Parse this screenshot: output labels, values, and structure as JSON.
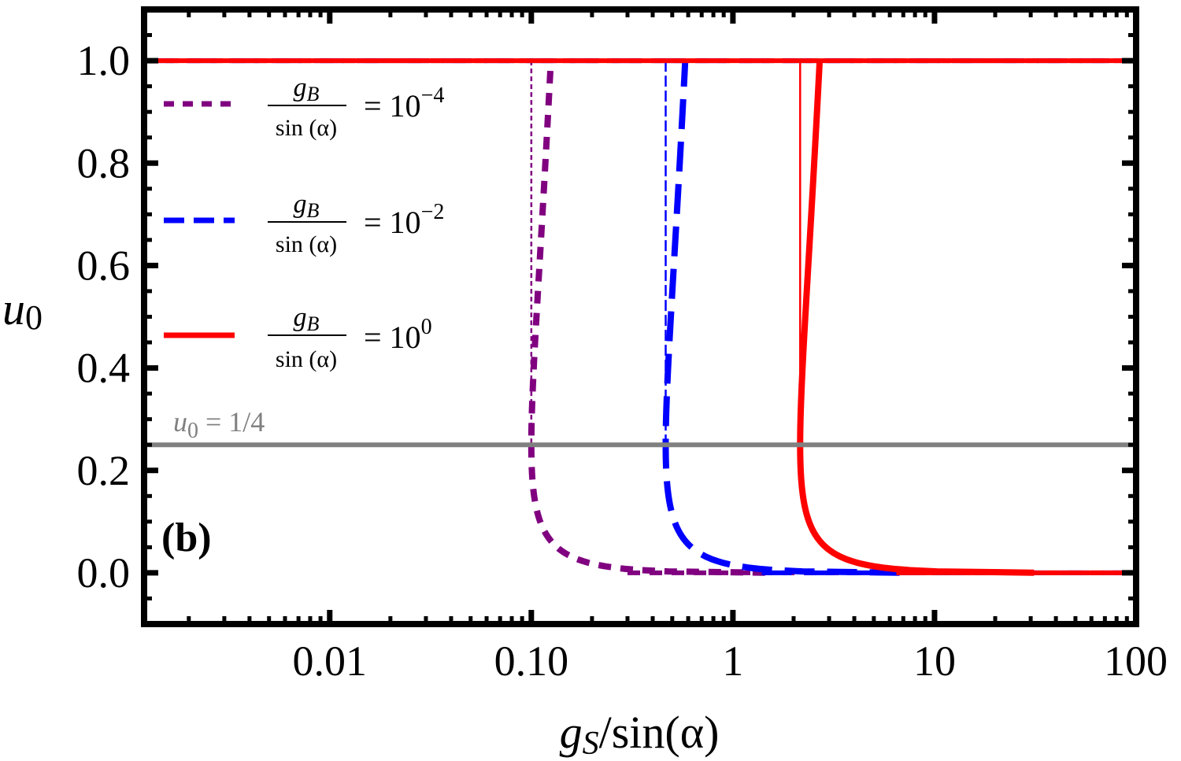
{
  "chart_data": {
    "type": "line",
    "x_scale": "log",
    "xlim": [
      0.0012,
      100
    ],
    "ylim": [
      -0.1,
      1.1
    ],
    "xticks": [
      {
        "value": 0.01,
        "label": "0.01"
      },
      {
        "value": 0.1,
        "label": "0.10"
      },
      {
        "value": 1,
        "label": "1"
      },
      {
        "value": 10,
        "label": "10"
      },
      {
        "value": 100,
        "label": "100"
      }
    ],
    "yticks": [
      {
        "value": 0.0,
        "label": "0.0"
      },
      {
        "value": 0.2,
        "label": "0.2"
      },
      {
        "value": 0.4,
        "label": "0.4"
      },
      {
        "value": 0.6,
        "label": "0.6"
      },
      {
        "value": 0.8,
        "label": "0.8"
      },
      {
        "value": 1.0,
        "label": "1.0"
      }
    ],
    "xlabel": {
      "g": "g",
      "sub": "S",
      "rest": "/sin(α)"
    },
    "ylabel": {
      "u": "u",
      "sub": "0"
    },
    "panel_label": "(b)",
    "reference_line": {
      "y": 0.25,
      "label_u": "u",
      "label_sub": "0",
      "label_rest": " = 1/4",
      "color": "#808080"
    },
    "legend": {
      "numerator": "g",
      "numerator_sub": "B",
      "denominator": "sin (α)",
      "equals": "= 10"
    },
    "series": [
      {
        "name": "gB/sin(α) = 10^-4",
        "exponent": "−4",
        "color": "#800080",
        "style": "dotted",
        "xc": 0.1
      },
      {
        "name": "gB/sin(α) = 10^-2",
        "exponent": "−2",
        "color": "#0000ff",
        "style": "dashed",
        "xc": 0.464
      },
      {
        "name": "gB/sin(α) = 10^0",
        "exponent": "0",
        "color": "#ff0000",
        "style": "solid",
        "xc": 2.155
      }
    ]
  }
}
